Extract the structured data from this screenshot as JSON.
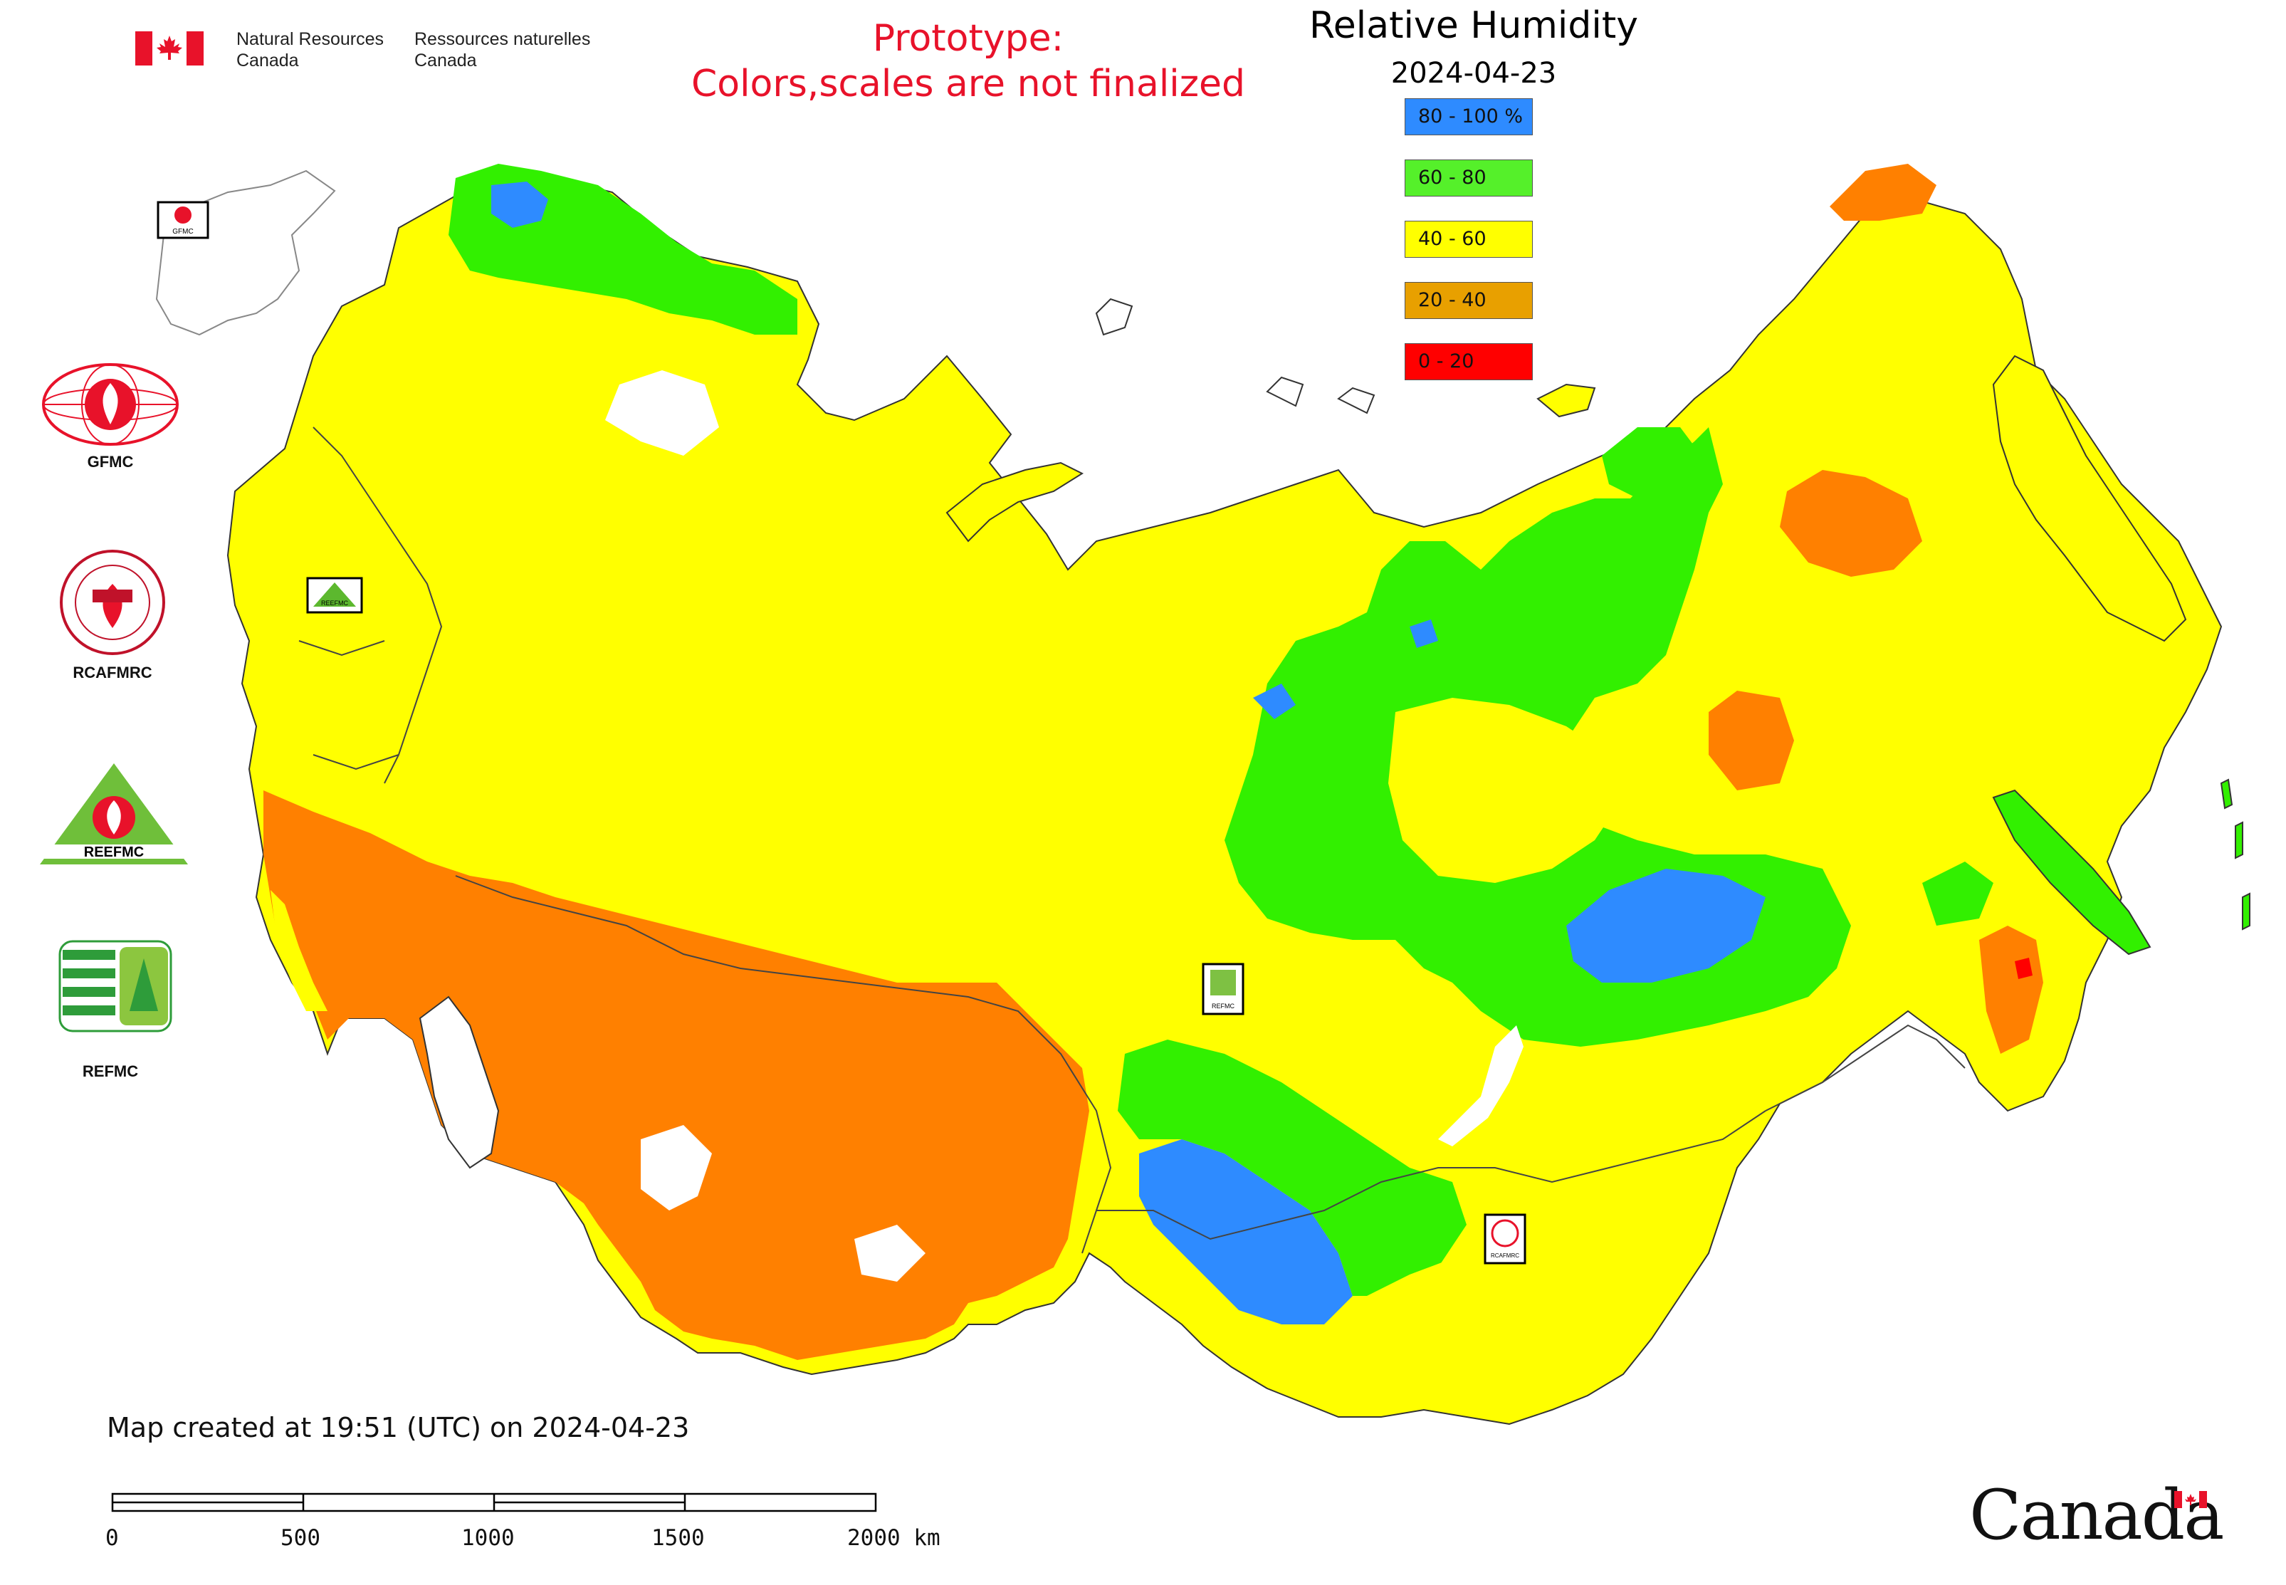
{
  "header": {
    "agency_en_1": "Natural Resources",
    "agency_en_2": "Canada",
    "agency_fr_1": "Ressources naturelles",
    "agency_fr_2": "Canada",
    "prototype_line1": "Prototype:",
    "prototype_line2": "Colors,scales are not finalized",
    "title": "Relative Humidity",
    "date": "2024-04-23"
  },
  "legend": {
    "items": [
      {
        "label": "80 - 100 %",
        "color": "#2e8bff"
      },
      {
        "label": "60 - 80",
        "color": "#55f02a"
      },
      {
        "label": "40 - 60",
        "color": "#ffff00"
      },
      {
        "label": "20 - 40",
        "color": "#e8a000"
      },
      {
        "label": "0 - 20",
        "color": "#ff0000"
      }
    ]
  },
  "map_colors": {
    "very_humid": "#2e8bff",
    "humid": "#32f000",
    "moderate": "#ffff00",
    "dry": "#ff8000",
    "very_dry": "#ff0000",
    "outside": "#ffffff",
    "border": "#444444"
  },
  "logos": {
    "gfmc": "GFMC",
    "rcafmrc": "RCAFMRC",
    "reefmc": "REEFMC",
    "refmc": "REFMC"
  },
  "map_markers": {
    "gfmc_label": "GFMC",
    "reefmc_label": "REEFMC",
    "refmc_label": "REFMC",
    "rcafmrc_label": "RCAFMRC"
  },
  "footer": {
    "created": "Map created at 19:51 (UTC) on 2024-04-23",
    "scale_labels": [
      "0",
      "500",
      "1000",
      "1500",
      "2000 km"
    ],
    "wordmark": "Canada"
  }
}
